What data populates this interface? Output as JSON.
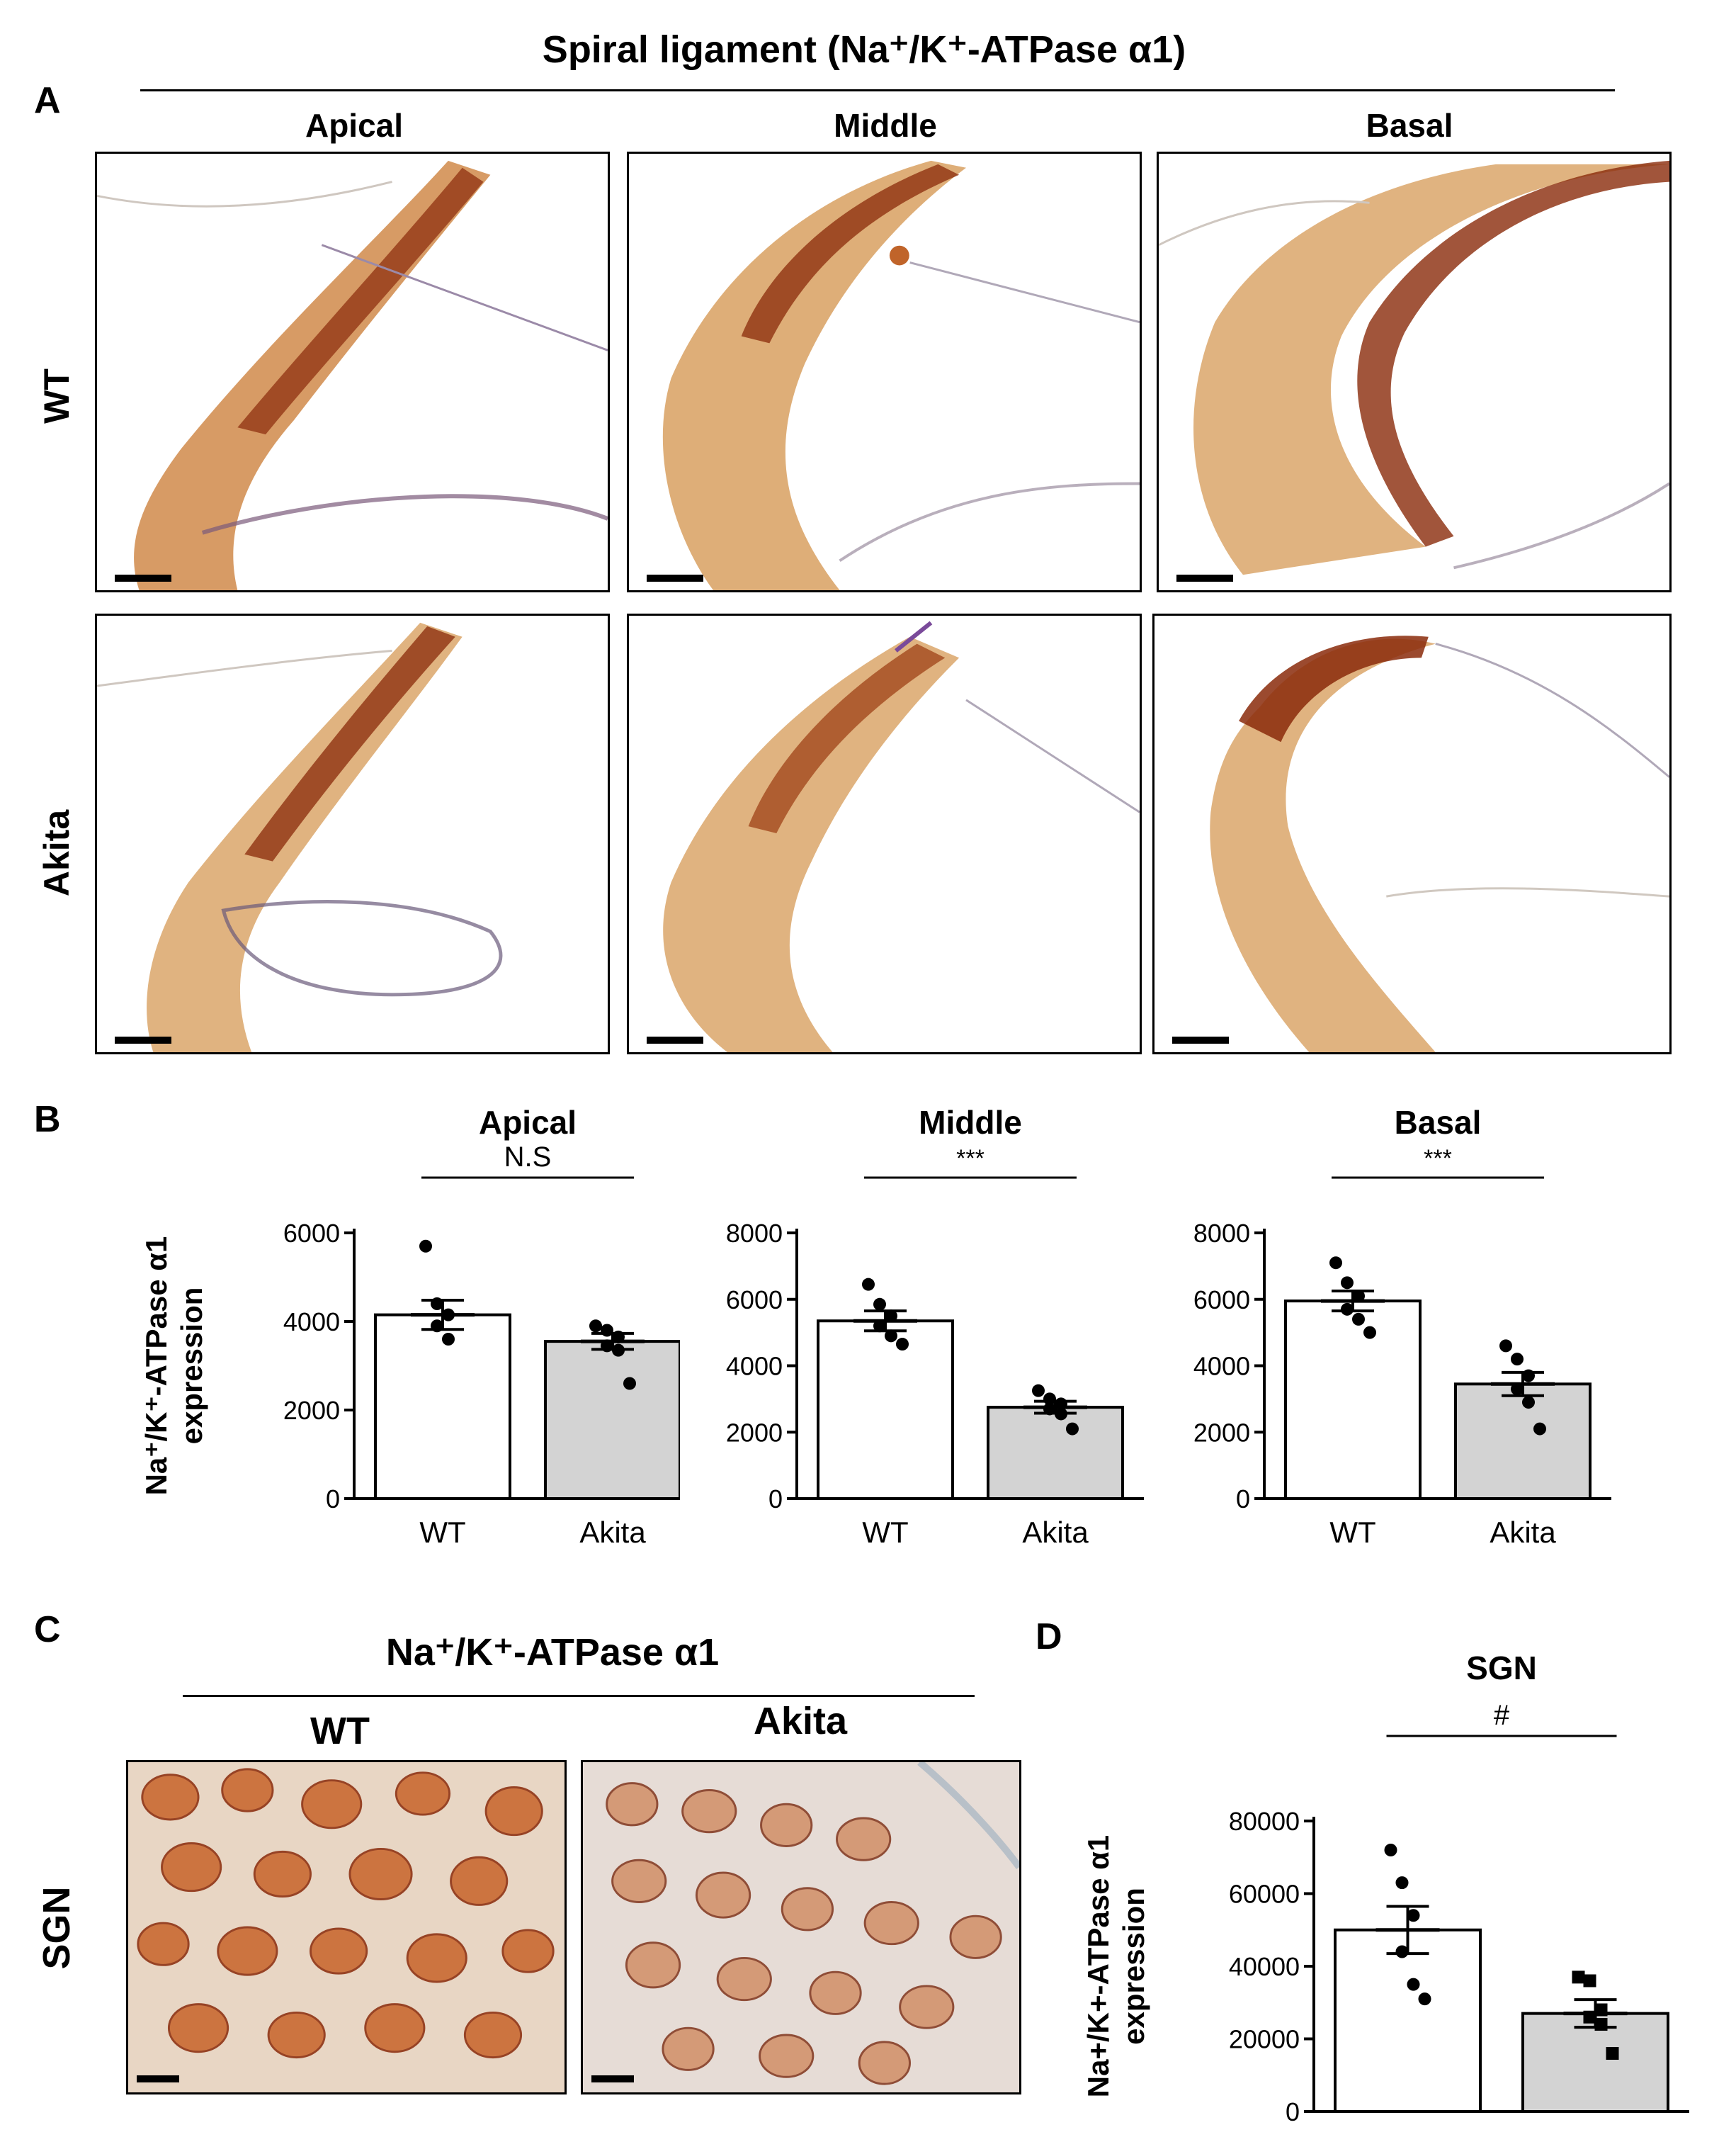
{
  "panel_a": {
    "letter": "A",
    "title": "Spiral ligament (Na⁺/K⁺-ATPase α1)",
    "columns": [
      "Apical",
      "Middle",
      "Basal"
    ],
    "rows": [
      "WT",
      "Akita"
    ]
  },
  "panel_b": {
    "letter": "B"
  },
  "panel_c": {
    "letter": "C",
    "title": "Na⁺/K⁺-ATPase α1",
    "columns": [
      "WT",
      "Akita"
    ],
    "row_label": "SGN"
  },
  "panel_d": {
    "letter": "D"
  },
  "colors": {
    "stain_dark": "#8a2a0a",
    "stain_mid": "#c0642a",
    "stain_light": "#e2b07a",
    "bar_akita": "#d3d3d3",
    "bar_wt": "#ffffff"
  },
  "chart_data": [
    {
      "type": "bar",
      "title": "Apical",
      "ylabel": "Na⁺/K⁺-ATPase α1 expression",
      "categories": [
        "WT",
        "Akita"
      ],
      "values": [
        4150,
        3550
      ],
      "sem": [
        330,
        180
      ],
      "ylim": [
        0,
        6000
      ],
      "yticks": [
        0,
        2000,
        4000,
        6000
      ],
      "points": [
        [
          5700,
          4400,
          4150,
          3900,
          3600
        ],
        [
          3900,
          3800,
          3650,
          3450,
          3350,
          2600
        ]
      ],
      "significance": "N.S"
    },
    {
      "type": "bar",
      "title": "Middle",
      "ylabel": "",
      "categories": [
        "WT",
        "Akita"
      ],
      "values": [
        5350,
        2750
      ],
      "sem": [
        300,
        180
      ],
      "ylim": [
        0,
        8000
      ],
      "yticks": [
        0,
        2000,
        4000,
        6000,
        8000
      ],
      "points": [
        [
          6450,
          5850,
          5500,
          5200,
          4900,
          4650
        ],
        [
          3250,
          3000,
          2850,
          2700,
          2550,
          2100
        ]
      ],
      "significance": "***"
    },
    {
      "type": "bar",
      "title": "Basal",
      "ylabel": "",
      "categories": [
        "WT",
        "Akita"
      ],
      "values": [
        5950,
        3450
      ],
      "sem": [
        300,
        350
      ],
      "ylim": [
        0,
        8000
      ],
      "yticks": [
        0,
        2000,
        4000,
        6000,
        8000
      ],
      "points": [
        [
          7100,
          6500,
          6100,
          5700,
          5400,
          5000
        ],
        [
          4600,
          4200,
          3700,
          3300,
          2900,
          2100
        ]
      ],
      "significance": "***"
    },
    {
      "type": "bar",
      "title": "SGN",
      "ylabel": "Na+/K+-ATPase α1 expression",
      "categories": [
        "WT",
        "Akita"
      ],
      "values": [
        50000,
        27000
      ],
      "sem": [
        6500,
        3800
      ],
      "ylim": [
        0,
        80000
      ],
      "yticks": [
        0,
        20000,
        40000,
        60000,
        80000
      ],
      "points": [
        [
          72000,
          63000,
          54000,
          44000,
          35000,
          31000
        ],
        [
          37000,
          36000,
          28000,
          26000,
          24000,
          16000
        ]
      ],
      "significance": "#"
    }
  ]
}
